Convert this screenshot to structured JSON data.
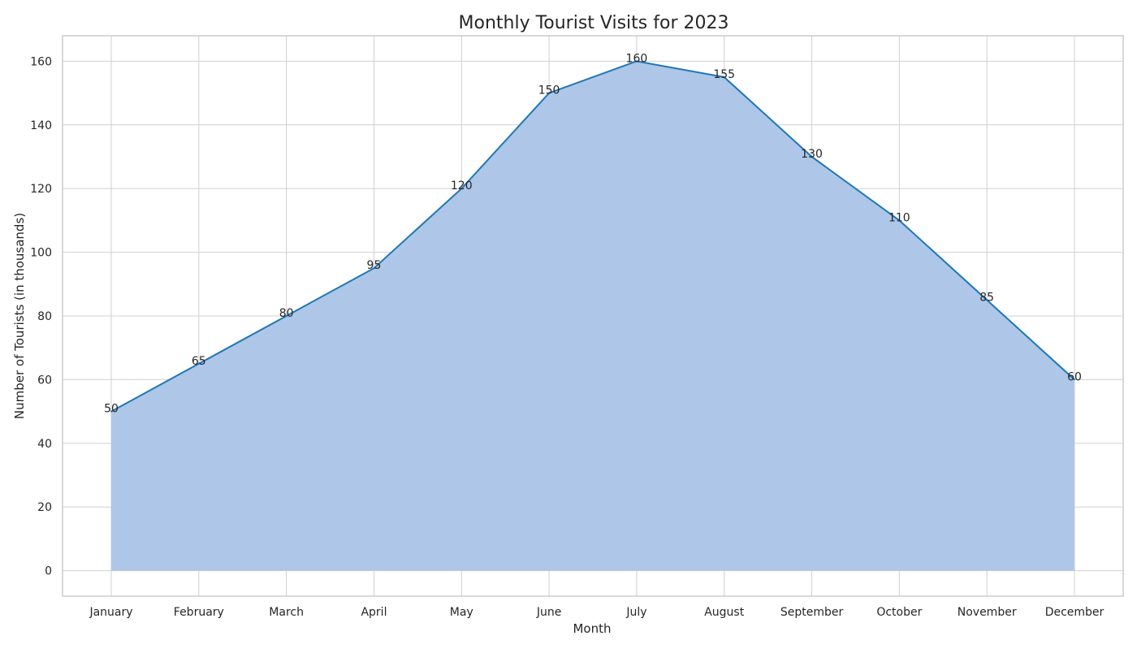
{
  "chart_data": {
    "type": "area",
    "title": "Monthly Tourist Visits for 2023",
    "xlabel": "Month",
    "ylabel": "Number of Tourists (in thousands)",
    "categories": [
      "January",
      "February",
      "March",
      "April",
      "May",
      "June",
      "July",
      "August",
      "September",
      "October",
      "November",
      "December"
    ],
    "series": [
      {
        "values": [
          50,
          65,
          80,
          95,
          120,
          150,
          160,
          155,
          130,
          110,
          85,
          60
        ]
      }
    ],
    "ylim": [
      -8,
      168
    ],
    "yticks": [
      0,
      20,
      40,
      60,
      80,
      100,
      120,
      140,
      160
    ],
    "grid": true,
    "colors": {
      "fill": "#aec6e8",
      "line": "#1f77b4",
      "grid": "#d0d0d0",
      "spine": "#cccccc"
    },
    "data_labels": true
  }
}
